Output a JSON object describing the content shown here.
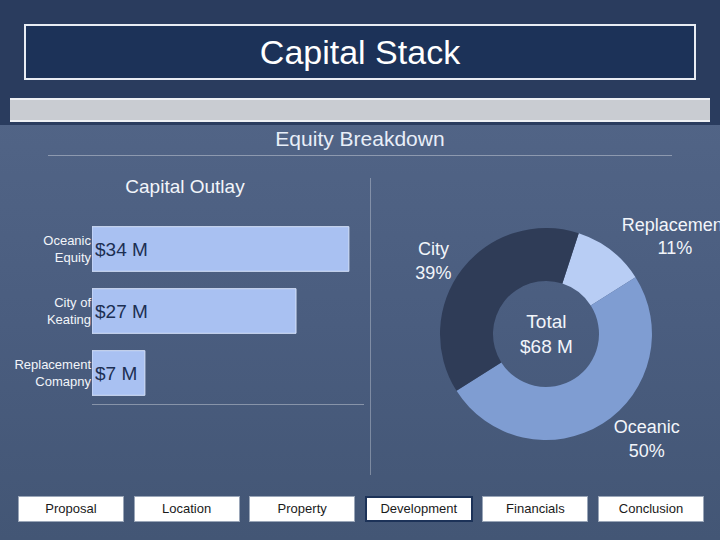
{
  "slide": {
    "title": "Capital Stack",
    "subtitle": "Equity Breakdown",
    "nav": [
      "Proposal",
      "Location",
      "Property",
      "Development",
      "Financials",
      "Conclusion"
    ],
    "active": "Development"
  },
  "chart_data": [
    {
      "type": "bar",
      "title": "Capital Outlay",
      "orientation": "horizontal",
      "categories": [
        "Oceanic Equity",
        "City of Keating",
        "Replacement Comapny"
      ],
      "values": [
        34,
        27,
        7
      ],
      "value_labels": [
        "$34 M",
        "$27 M",
        "$7 M"
      ],
      "data_labels": true,
      "color": "#a9c1f2",
      "xlim": [
        0,
        36
      ],
      "xticks": [],
      "tick_labels": "y",
      "grid": false
    },
    {
      "type": "pie",
      "categories": [
        "Replacement",
        "Oceanic",
        "City"
      ],
      "values": [
        11,
        50,
        39
      ],
      "value_labels": [
        "11%",
        "50%",
        "39%"
      ],
      "colors": [
        "#b8cdf4",
        "#7f9dd2",
        "#2f3c57"
      ],
      "data_labels": true,
      "annotations": [
        "Total",
        "$68 M"
      ]
    }
  ]
}
